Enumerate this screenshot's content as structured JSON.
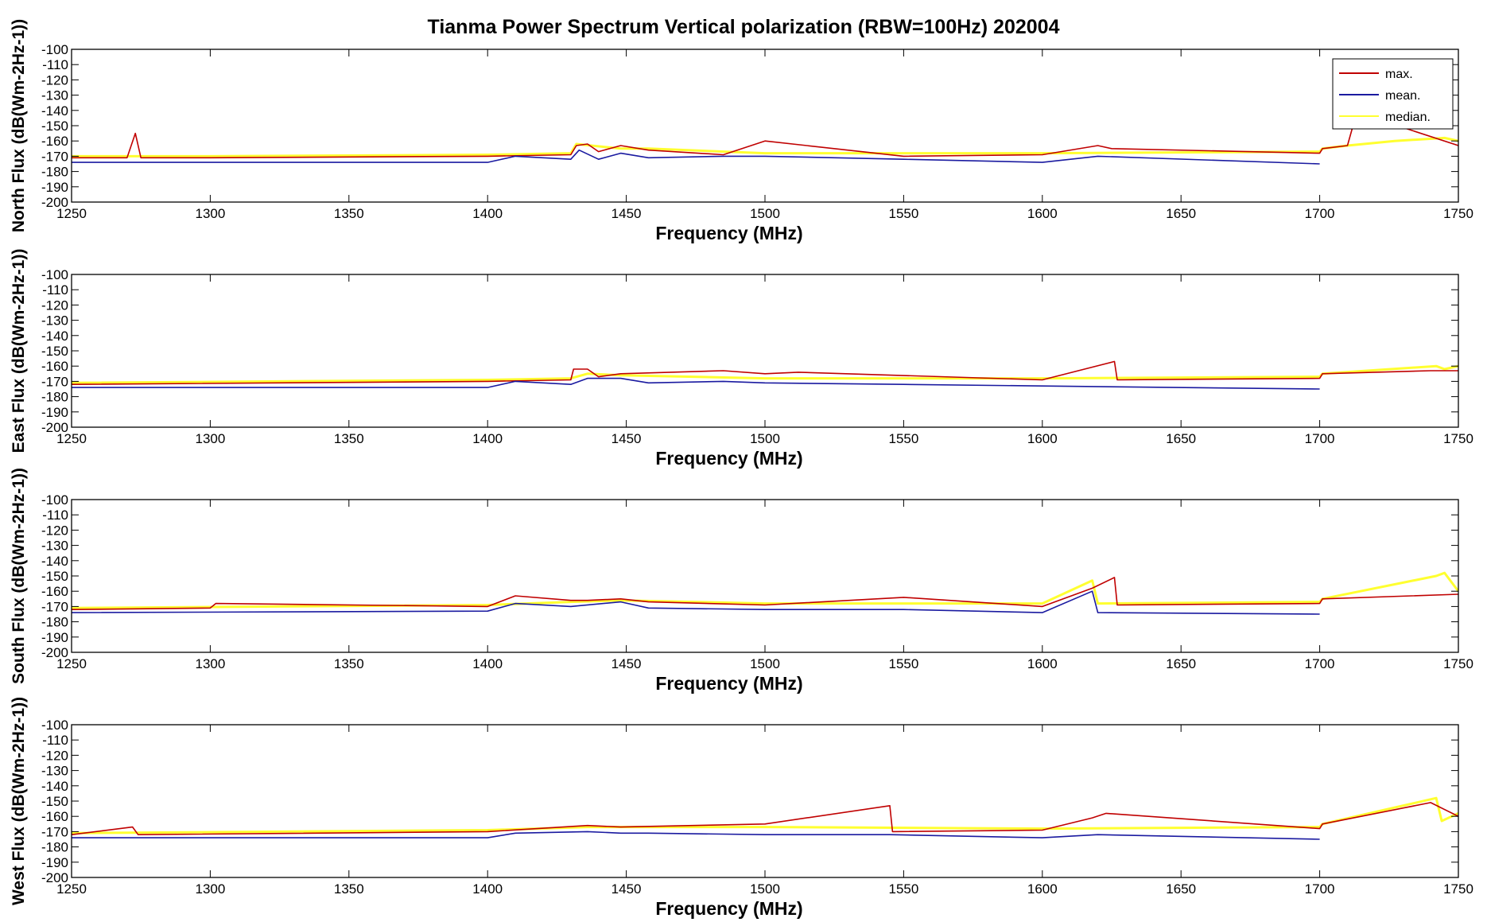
{
  "title": "Tianma Power Spectrum Vertical  polarization (RBW=100Hz) 202004",
  "legend": {
    "position": "top-right",
    "items": [
      {
        "label": "max.",
        "color": "#c00000"
      },
      {
        "label": "mean.",
        "color": "#1a1aa0"
      },
      {
        "label": "median.",
        "color": "#ffff30"
      }
    ]
  },
  "colors": {
    "max": "#c00000",
    "mean": "#1a1aa0",
    "median": "#ffff30",
    "axis": "#000000"
  },
  "chart_data": [
    {
      "type": "line",
      "title": "",
      "xlabel": "Frequency (MHz)",
      "ylabel": "North Flux (dB(Wm-2Hz-1))",
      "xlim": [
        1250,
        1750
      ],
      "ylim": [
        -200,
        -100
      ],
      "xticks": [
        1250,
        1300,
        1350,
        1400,
        1450,
        1500,
        1550,
        1600,
        1650,
        1700,
        1750
      ],
      "yticks": [
        -100,
        -110,
        -120,
        -130,
        -140,
        -150,
        -160,
        -170,
        -180,
        -190,
        -200
      ],
      "grid": false,
      "legend": "top-right",
      "series": [
        {
          "name": "max.",
          "x": [
            1250,
            1270,
            1273,
            1275,
            1300,
            1400,
            1430,
            1432,
            1436,
            1440,
            1448,
            1458,
            1485,
            1500,
            1550,
            1600,
            1620,
            1625,
            1700,
            1701,
            1710,
            1712,
            1728,
            1750
          ],
          "values": [
            -171,
            -171,
            -155,
            -171,
            -171,
            -170,
            -169,
            -163,
            -162,
            -167,
            -163,
            -166,
            -169,
            -160,
            -170,
            -169,
            -163,
            -165,
            -168,
            -165,
            -163,
            -150,
            -150,
            -163
          ]
        },
        {
          "name": "mean.",
          "x": [
            1250,
            1300,
            1400,
            1410,
            1430,
            1433,
            1440,
            1448,
            1458,
            1485,
            1500,
            1550,
            1600,
            1620,
            1700
          ],
          "values": [
            -174,
            -174,
            -174,
            -170,
            -172,
            -166,
            -172,
            -168,
            -171,
            -170,
            -170,
            -172,
            -174,
            -170,
            -175
          ]
        },
        {
          "name": "median.",
          "x": [
            1250,
            1300,
            1400,
            1430,
            1432,
            1448,
            1458,
            1500,
            1600,
            1700,
            1701,
            1710,
            1727,
            1745,
            1750
          ],
          "values": [
            -170,
            -170,
            -169,
            -168,
            -162,
            -165,
            -165,
            -168,
            -168,
            -167,
            -165,
            -163,
            -160,
            -158,
            -160
          ]
        }
      ]
    },
    {
      "type": "line",
      "title": "",
      "xlabel": "Frequency (MHz)",
      "ylabel": "East Flux (dB(Wm-2Hz-1))",
      "xlim": [
        1250,
        1750
      ],
      "ylim": [
        -200,
        -100
      ],
      "xticks": [
        1250,
        1300,
        1350,
        1400,
        1450,
        1500,
        1550,
        1600,
        1650,
        1700,
        1750
      ],
      "yticks": [
        -100,
        -110,
        -120,
        -130,
        -140,
        -150,
        -160,
        -170,
        -180,
        -190,
        -200
      ],
      "grid": false,
      "legend": "",
      "series": [
        {
          "name": "max.",
          "x": [
            1250,
            1400,
            1430,
            1431,
            1436,
            1440,
            1448,
            1485,
            1500,
            1512,
            1600,
            1626,
            1627,
            1700,
            1701,
            1740,
            1750
          ],
          "values": [
            -172,
            -170,
            -169,
            -162,
            -162,
            -167,
            -165,
            -163,
            -165,
            -164,
            -169,
            -157,
            -169,
            -168,
            -165,
            -163,
            -163
          ]
        },
        {
          "name": "mean.",
          "x": [
            1250,
            1400,
            1410,
            1430,
            1436,
            1448,
            1458,
            1485,
            1500,
            1550,
            1600,
            1700
          ],
          "values": [
            -174,
            -174,
            -170,
            -172,
            -168,
            -168,
            -171,
            -170,
            -171,
            -172,
            -173,
            -175
          ]
        },
        {
          "name": "median.",
          "x": [
            1250,
            1400,
            1430,
            1436,
            1448,
            1500,
            1600,
            1700,
            1701,
            1742,
            1745,
            1750
          ],
          "values": [
            -171,
            -169,
            -168,
            -165,
            -166,
            -168,
            -168,
            -167,
            -165,
            -160,
            -162,
            -160
          ]
        }
      ]
    },
    {
      "type": "line",
      "title": "",
      "xlabel": "Frequency (MHz)",
      "ylabel": "South Flux (dB(Wm-2Hz-1))",
      "xlim": [
        1250,
        1750
      ],
      "ylim": [
        -200,
        -100
      ],
      "xticks": [
        1250,
        1300,
        1350,
        1400,
        1450,
        1500,
        1550,
        1600,
        1650,
        1700,
        1750
      ],
      "yticks": [
        -100,
        -110,
        -120,
        -130,
        -140,
        -150,
        -160,
        -170,
        -180,
        -190,
        -200
      ],
      "grid": false,
      "legend": "",
      "series": [
        {
          "name": "max.",
          "x": [
            1250,
            1300,
            1302,
            1400,
            1410,
            1430,
            1436,
            1448,
            1458,
            1500,
            1550,
            1600,
            1618,
            1626,
            1627,
            1700,
            1701,
            1750
          ],
          "values": [
            -172,
            -171,
            -168,
            -170,
            -163,
            -166,
            -166,
            -165,
            -167,
            -169,
            -164,
            -170,
            -158,
            -151,
            -169,
            -168,
            -165,
            -162
          ]
        },
        {
          "name": "mean.",
          "x": [
            1250,
            1400,
            1410,
            1430,
            1448,
            1458,
            1500,
            1550,
            1600,
            1618,
            1620,
            1700
          ],
          "values": [
            -174,
            -173,
            -168,
            -170,
            -167,
            -171,
            -172,
            -172,
            -174,
            -160,
            -174,
            -175
          ]
        },
        {
          "name": "median.",
          "x": [
            1250,
            1400,
            1430,
            1448,
            1500,
            1600,
            1618,
            1620,
            1700,
            1701,
            1742,
            1745,
            1750
          ],
          "values": [
            -171,
            -169,
            -167,
            -166,
            -168,
            -168,
            -153,
            -168,
            -167,
            -165,
            -150,
            -148,
            -160
          ]
        }
      ]
    },
    {
      "type": "line",
      "title": "",
      "xlabel": "Frequency (MHz)",
      "ylabel": "West Flux (dB(Wm-2Hz-1))",
      "xlim": [
        1250,
        1750
      ],
      "ylim": [
        -200,
        -100
      ],
      "xticks": [
        1250,
        1300,
        1350,
        1400,
        1450,
        1500,
        1550,
        1600,
        1650,
        1700,
        1750
      ],
      "yticks": [
        -100,
        -110,
        -120,
        -130,
        -140,
        -150,
        -160,
        -170,
        -180,
        -190,
        -200
      ],
      "grid": false,
      "legend": "",
      "series": [
        {
          "name": "max.",
          "x": [
            1250,
            1272,
            1274,
            1400,
            1436,
            1448,
            1500,
            1545,
            1546,
            1600,
            1618,
            1623,
            1700,
            1701,
            1740,
            1750
          ],
          "values": [
            -172,
            -167,
            -172,
            -170,
            -166,
            -167,
            -165,
            -153,
            -170,
            -169,
            -161,
            -158,
            -168,
            -165,
            -151,
            -160
          ]
        },
        {
          "name": "mean.",
          "x": [
            1250,
            1400,
            1410,
            1436,
            1448,
            1458,
            1500,
            1545,
            1600,
            1620,
            1700
          ],
          "values": [
            -174,
            -174,
            -171,
            -170,
            -171,
            -171,
            -172,
            -172,
            -174,
            -172,
            -175
          ]
        },
        {
          "name": "median.",
          "x": [
            1250,
            1400,
            1436,
            1448,
            1500,
            1600,
            1700,
            1701,
            1742,
            1744,
            1750
          ],
          "values": [
            -171,
            -169,
            -167,
            -167,
            -167,
            -168,
            -167,
            -165,
            -148,
            -163,
            -158
          ]
        }
      ]
    }
  ]
}
